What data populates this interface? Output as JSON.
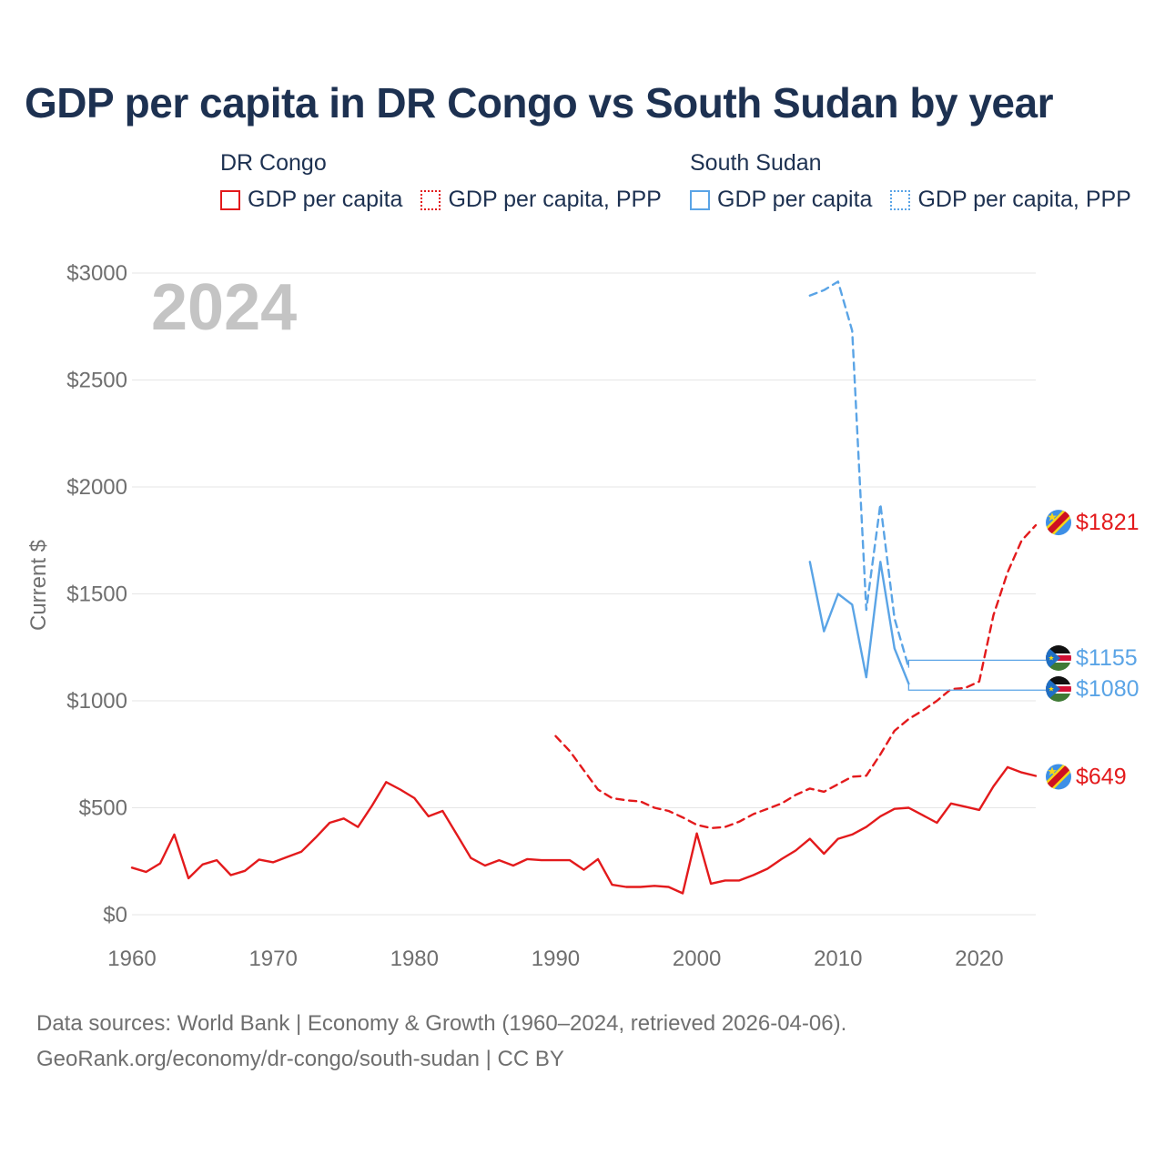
{
  "colors": {
    "congo": "#e31a1c",
    "sudan": "#5aa4e6",
    "title": "#1d3151",
    "axis_text": "#6f6f6f",
    "year_watermark": "#c4c4c4",
    "grid": "#e6e6e6"
  },
  "title": "GDP per capita in DR Congo vs South Sudan by year",
  "legend": {
    "groups": [
      {
        "title": "DR Congo",
        "items": [
          {
            "label": "GDP per capita",
            "style": "solid"
          },
          {
            "label": "GDP per capita, PPP",
            "style": "dotted"
          }
        ]
      },
      {
        "title": "South Sudan",
        "items": [
          {
            "label": "GDP per capita",
            "style": "solid"
          },
          {
            "label": "GDP per capita, PPP",
            "style": "dotted"
          }
        ]
      }
    ]
  },
  "footer": {
    "line1": "Data sources: World Bank | Economy & Growth (1960–2024, retrieved 2026-04-06).",
    "line2": "GeoRank.org/economy/dr-congo/south-sudan | CC BY"
  },
  "chart_data": {
    "type": "line",
    "year_label": "2024",
    "ylabel": "Current $",
    "xlim": [
      1960,
      2024
    ],
    "ylim": [
      0,
      3000
    ],
    "x_ticks": [
      1960,
      1970,
      1980,
      1990,
      2000,
      2010,
      2020
    ],
    "y_ticks": [
      {
        "value": 0,
        "label": "$0"
      },
      {
        "value": 500,
        "label": "$500"
      },
      {
        "value": 1000,
        "label": "$1000"
      },
      {
        "value": 1500,
        "label": "$1500"
      },
      {
        "value": 2000,
        "label": "$2000"
      },
      {
        "value": 2500,
        "label": "$2500"
      },
      {
        "value": 3000,
        "label": "$3000"
      }
    ],
    "series": [
      {
        "name": "DR Congo GDP per capita",
        "country": "congo",
        "dash": "solid",
        "end_label": "$649",
        "x": [
          1960,
          1961,
          1962,
          1963,
          1964,
          1965,
          1966,
          1967,
          1968,
          1969,
          1970,
          1971,
          1972,
          1973,
          1974,
          1975,
          1976,
          1977,
          1978,
          1979,
          1980,
          1981,
          1982,
          1983,
          1984,
          1985,
          1986,
          1987,
          1988,
          1989,
          1990,
          1991,
          1992,
          1993,
          1994,
          1995,
          1996,
          1997,
          1998,
          1999,
          2000,
          2001,
          2002,
          2003,
          2004,
          2005,
          2006,
          2007,
          2008,
          2009,
          2010,
          2011,
          2012,
          2013,
          2014,
          2015,
          2016,
          2017,
          2018,
          2019,
          2020,
          2021,
          2022,
          2023,
          2024
        ],
        "y": [
          220,
          200,
          240,
          375,
          170,
          235,
          255,
          185,
          205,
          258,
          245,
          270,
          295,
          360,
          430,
          450,
          410,
          510,
          620,
          585,
          545,
          460,
          485,
          375,
          265,
          230,
          255,
          230,
          260,
          255,
          255,
          255,
          210,
          260,
          140,
          130,
          130,
          135,
          130,
          100,
          380,
          145,
          160,
          160,
          185,
          215,
          260,
          300,
          355,
          285,
          355,
          375,
          410,
          460,
          495,
          500,
          465,
          430,
          520,
          505,
          490,
          600,
          690,
          665,
          649
        ]
      },
      {
        "name": "DR Congo GDP per capita, PPP",
        "country": "congo",
        "dash": "dashed",
        "end_label": "$1821",
        "x": [
          1990,
          1991,
          1992,
          1993,
          1994,
          1995,
          1996,
          1997,
          1998,
          1999,
          2000,
          2001,
          2002,
          2003,
          2004,
          2005,
          2006,
          2007,
          2008,
          2009,
          2010,
          2011,
          2012,
          2013,
          2014,
          2015,
          2016,
          2017,
          2018,
          2019,
          2020,
          2021,
          2022,
          2023,
          2024
        ],
        "y": [
          835,
          765,
          675,
          585,
          545,
          535,
          530,
          500,
          485,
          455,
          420,
          405,
          410,
          435,
          470,
          495,
          520,
          560,
          590,
          575,
          610,
          645,
          650,
          750,
          860,
          915,
          955,
          1000,
          1055,
          1060,
          1090,
          1400,
          1600,
          1750,
          1821
        ]
      },
      {
        "name": "South Sudan GDP per capita",
        "country": "sudan",
        "dash": "solid",
        "end_label": "$1080",
        "end_value": 1080,
        "label_lead_y": 1050,
        "x": [
          2008,
          2009,
          2010,
          2011,
          2012,
          2013,
          2014,
          2015
        ],
        "y": [
          1650,
          1325,
          1500,
          1450,
          1110,
          1650,
          1245,
          1080
        ]
      },
      {
        "name": "South Sudan GDP per capita, PPP",
        "country": "sudan",
        "dash": "dashed",
        "end_label": "$1155",
        "end_value": 1155,
        "label_lead_y": 1190,
        "x": [
          2008,
          2009,
          2010,
          2011,
          2012,
          2013,
          2014,
          2015
        ],
        "y": [
          2895,
          2920,
          2960,
          2730,
          1425,
          1920,
          1385,
          1155
        ]
      }
    ]
  }
}
